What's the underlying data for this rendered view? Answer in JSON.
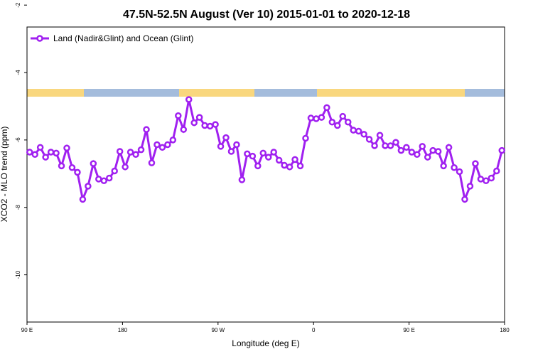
{
  "chart_data": {
    "type": "line",
    "title": "47.5N-52.5N August (Ver 10)   2015-01-01 to 2020-12-18",
    "xlabel": "Longitude (deg E)",
    "ylabel": "XCO2 - MLO trend (ppm)",
    "legend_loc": "upper left",
    "xlim": [
      90,
      540
    ],
    "ylim": [
      -11.4,
      -2.65
    ],
    "xticks": [
      {
        "value": 90,
        "label": "90 E"
      },
      {
        "value": 180,
        "label": "180"
      },
      {
        "value": 270,
        "label": "90 W"
      },
      {
        "value": 360,
        "label": "0"
      },
      {
        "value": 450,
        "label": "90 E"
      },
      {
        "value": 540,
        "label": "180"
      }
    ],
    "yticks": [
      -2,
      -4,
      -6,
      -8,
      -10
    ],
    "x": [
      92.5,
      97.5,
      102.5,
      107.5,
      112.5,
      117.5,
      122.5,
      127.5,
      132.5,
      137.5,
      142.5,
      147.5,
      152.5,
      157.5,
      162.5,
      167.5,
      172.5,
      177.5,
      182.5,
      187.5,
      192.5,
      197.5,
      202.5,
      207.5,
      212.5,
      217.5,
      222.5,
      227.5,
      232.5,
      237.5,
      242.5,
      247.5,
      252.5,
      257.5,
      262.5,
      267.5,
      272.5,
      277.5,
      282.5,
      287.5,
      292.5,
      297.5,
      302.5,
      307.5,
      312.5,
      317.5,
      322.5,
      327.5,
      332.5,
      337.5,
      342.5,
      347.5,
      352.5,
      357.5,
      362.5,
      367.5,
      372.5,
      377.5,
      382.5,
      387.5,
      392.5,
      397.5,
      402.5,
      407.5,
      412.5,
      417.5,
      422.5,
      427.5,
      432.5,
      437.5,
      442.5,
      447.5,
      452.5,
      457.5,
      462.5,
      467.5,
      472.5,
      477.5,
      482.5,
      487.5,
      492.5,
      497.5,
      502.5,
      507.5,
      512.5,
      517.5,
      522.5,
      527.5,
      532.5,
      537.5
    ],
    "series": [
      {
        "name": "Land (Nadir&Glint) and Ocean (Glint)",
        "color": "#a020f0",
        "values": [
          -6.36,
          -6.43,
          -6.22,
          -6.51,
          -6.36,
          -6.39,
          -6.77,
          -6.24,
          -6.82,
          -6.96,
          -7.76,
          -7.37,
          -6.7,
          -7.16,
          -7.21,
          -7.13,
          -6.92,
          -6.34,
          -6.8,
          -6.36,
          -6.43,
          -6.29,
          -5.69,
          -6.68,
          -6.14,
          -6.22,
          -6.14,
          -6.0,
          -5.28,
          -5.69,
          -4.8,
          -5.49,
          -5.33,
          -5.57,
          -5.59,
          -5.54,
          -6.19,
          -5.93,
          -6.34,
          -6.14,
          -7.18,
          -6.41,
          -6.48,
          -6.77,
          -6.39,
          -6.51,
          -6.36,
          -6.6,
          -6.75,
          -6.8,
          -6.58,
          -6.77,
          -5.95,
          -5.35,
          -5.37,
          -5.33,
          -5.04,
          -5.47,
          -5.57,
          -5.3,
          -5.47,
          -5.71,
          -5.74,
          -5.83,
          -5.98,
          -6.17,
          -5.86,
          -6.17,
          -6.17,
          -6.07,
          -6.31,
          -6.22,
          -6.36,
          -6.43,
          -6.19,
          -6.51,
          -6.31,
          -6.34,
          -6.77,
          -6.22,
          -6.82,
          -6.94,
          -7.76,
          -7.37,
          -6.7,
          -7.16,
          -7.21,
          -7.13,
          -6.92,
          -6.31
        ]
      }
    ]
  }
}
